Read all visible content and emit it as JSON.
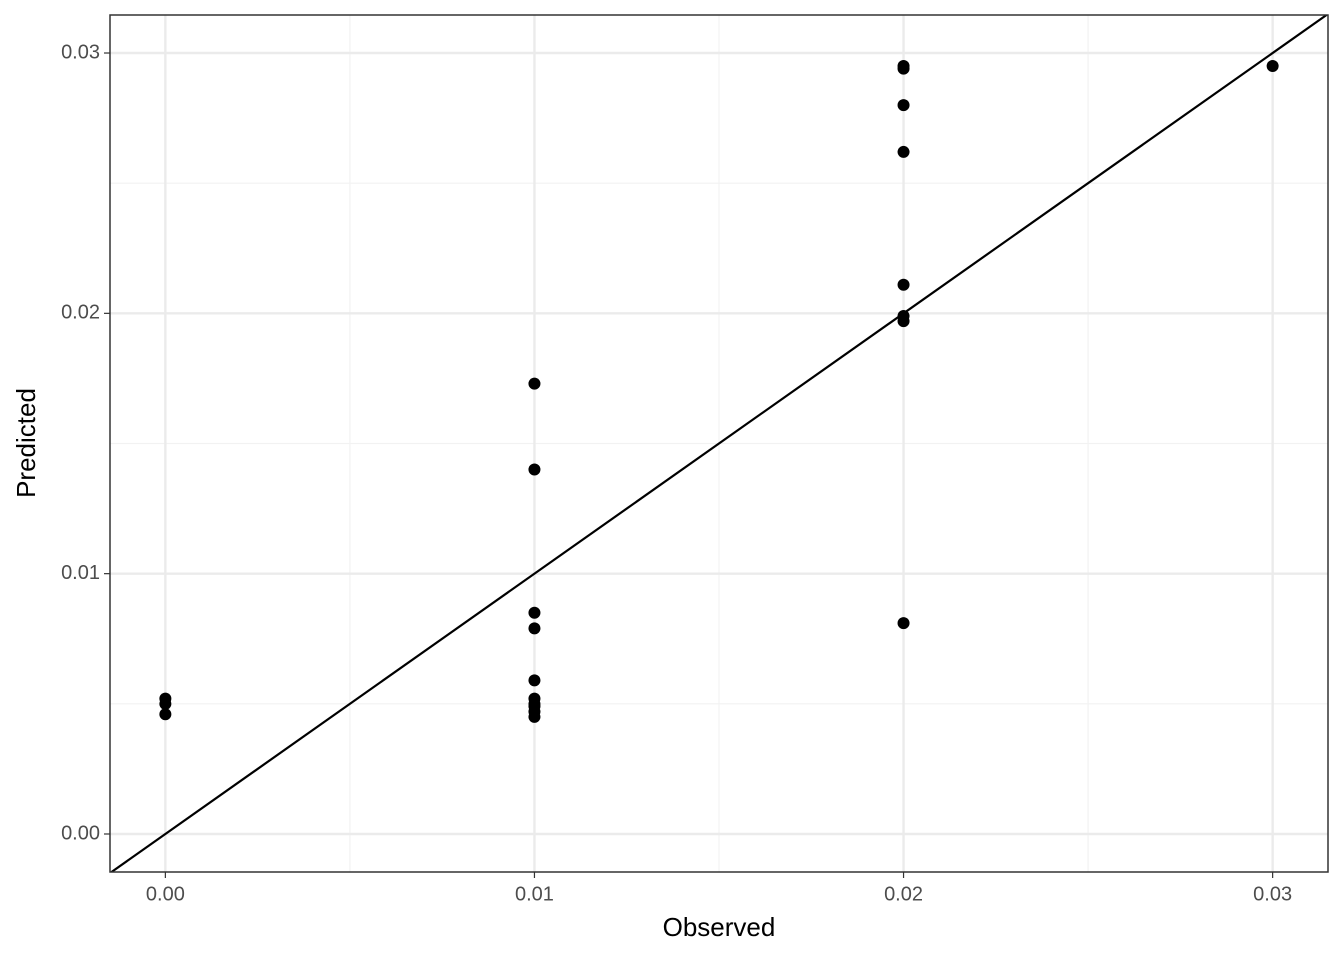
{
  "chart_data": {
    "type": "scatter",
    "x_label": "Observed",
    "y_label": "Predicted",
    "x": [
      0,
      0,
      0,
      0.01,
      0.01,
      0.01,
      0.01,
      0.01,
      0.01,
      0.01,
      0.01,
      0.01,
      0.01,
      0.02,
      0.02,
      0.02,
      0.02,
      0.02,
      0.02,
      0.02,
      0.02,
      0.03
    ],
    "values": [
      0.0052,
      0.005,
      0.0046,
      0.0173,
      0.014,
      0.0085,
      0.0079,
      0.0059,
      0.0052,
      0.005,
      0.0049,
      0.0047,
      0.0045,
      0.0295,
      0.0294,
      0.028,
      0.0262,
      0.0211,
      0.0199,
      0.0197,
      0.0081,
      0.0295
    ],
    "color": "#000000",
    "xlim": [
      -0.0015,
      0.0315
    ],
    "ylim": [
      -0.00146,
      0.03146
    ],
    "xticks": [
      {
        "value": 0,
        "label": "0.00"
      },
      0.01,
      0.02,
      0.03
    ],
    "yticks": [
      {
        "value": 0,
        "label": "0.00"
      },
      0.01,
      0.02,
      0.03
    ],
    "grid": true,
    "minor_grid": true,
    "identity_line": true
  }
}
